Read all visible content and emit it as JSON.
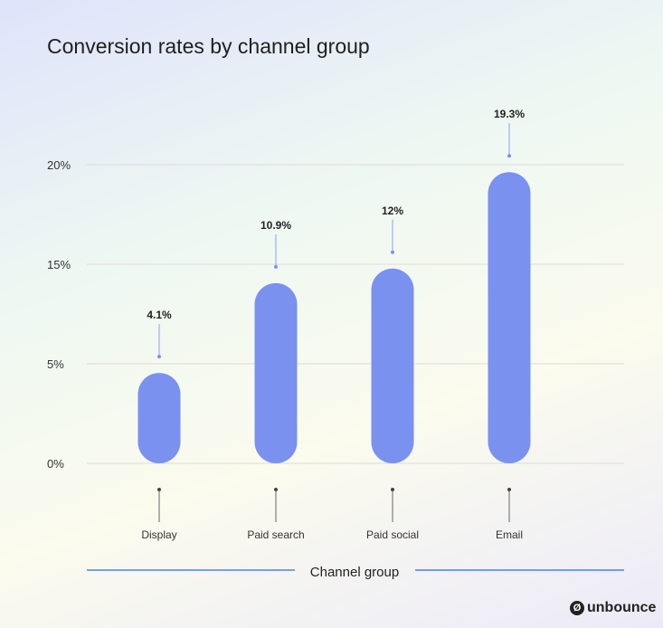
{
  "chart_data": {
    "type": "bar",
    "title": "Conversion rates by channel group",
    "xlabel": "Channel group",
    "ylabel": "",
    "categories": [
      "Display",
      "Paid search",
      "Paid social",
      "Email"
    ],
    "values": [
      4.1,
      10.9,
      12,
      19.3
    ],
    "data_labels": [
      "4.1%",
      "10.9%",
      "12%",
      "19.3%"
    ],
    "y_ticks": [
      "0%",
      "5%",
      "15%",
      "20%"
    ],
    "grid": true,
    "bar_color": "#7b91f0",
    "axis_line_color": "#1a73e8"
  },
  "brand": {
    "name": "unbounce",
    "mark": "Ø"
  }
}
